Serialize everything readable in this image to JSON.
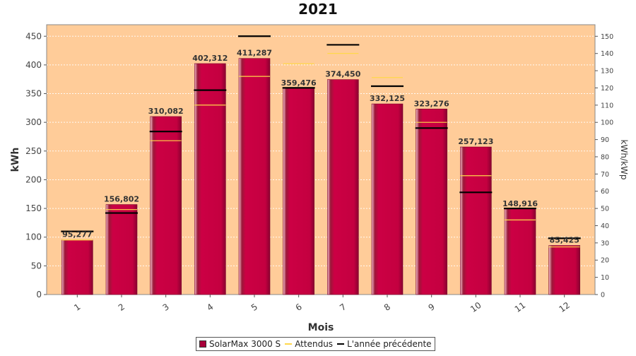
{
  "chart_data": {
    "type": "bar",
    "title": "2021",
    "xlabel": "Mois",
    "ylabel": "kWh",
    "y2label": "kWh/kWp",
    "categories": [
      "1",
      "2",
      "3",
      "4",
      "5",
      "6",
      "7",
      "8",
      "9",
      "10",
      "11",
      "12"
    ],
    "ylim": [
      0,
      470
    ],
    "y2lim": [
      0,
      156.7
    ],
    "yticks": [
      0,
      50,
      100,
      150,
      200,
      250,
      300,
      350,
      400,
      450
    ],
    "y2ticks": [
      0,
      10,
      20,
      30,
      40,
      50,
      60,
      70,
      80,
      90,
      100,
      110,
      120,
      130,
      140,
      150
    ],
    "grid": true,
    "series": [
      {
        "name": "SolarMax 3000 S",
        "kind": "bar",
        "color": "#cc0044",
        "values": [
          95.277,
          156.802,
          310.082,
          402.312,
          411.287,
          359.476,
          374.45,
          332.125,
          323.276,
          257.123,
          148.916,
          85.425
        ],
        "labels": [
          "95,277",
          "156,802",
          "310,082",
          "402,312",
          "411,287",
          "359,476",
          "374,450",
          "332,125",
          "323,276",
          "257,123",
          "148,916",
          "85,425"
        ]
      },
      {
        "name": "Attendus",
        "kind": "marker",
        "color": "#ffd84a",
        "values": [
          95,
          148,
          268,
          330,
          380,
          402,
          420,
          378,
          300,
          207,
          130,
          83
        ]
      },
      {
        "name": "L'année précédente",
        "kind": "marker",
        "color": "#000000",
        "values": [
          110,
          142,
          284,
          356,
          450,
          360,
          435,
          363,
          290,
          178,
          150,
          98
        ]
      }
    ],
    "legend_position": "bottom"
  },
  "colors": {
    "plot_background": "#ffcc99",
    "bar": "#cc0044",
    "expected": "#ffd84a",
    "previous_year": "#000000"
  }
}
